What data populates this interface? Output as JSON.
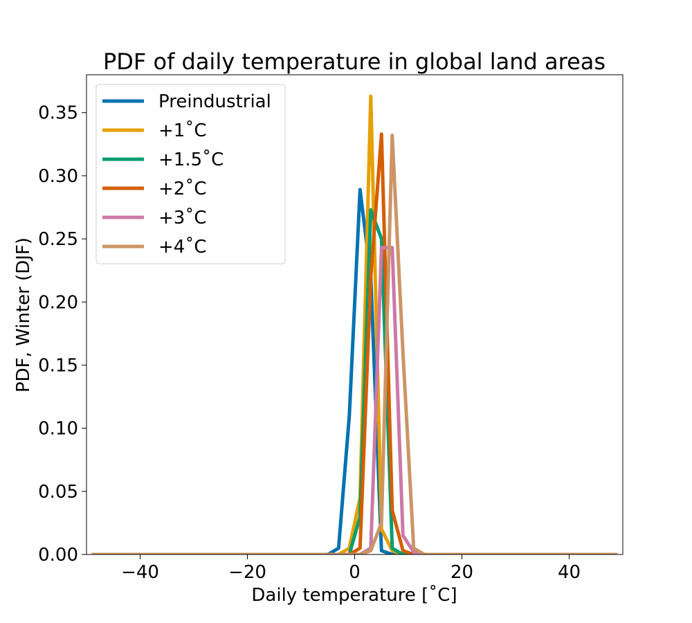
{
  "chart_data": {
    "type": "line",
    "title": "PDF of daily temperature in global land areas",
    "xlabel": "Daily temperature [˚C]",
    "ylabel": "PDF, Winter (DJF)",
    "xlim": [
      -50,
      50
    ],
    "ylim": [
      0,
      0.38
    ],
    "xticks": [
      -40,
      -20,
      0,
      20,
      40
    ],
    "xtick_labels": [
      "−40",
      "−20",
      "0",
      "20",
      "40"
    ],
    "yticks": [
      0,
      0.05,
      0.1,
      0.15,
      0.2,
      0.25,
      0.3,
      0.35
    ],
    "ytick_labels": [
      "0.00",
      "0.05",
      "0.10",
      "0.15",
      "0.20",
      "0.25",
      "0.30",
      "0.35"
    ],
    "grid": false,
    "legend_position": "upper-left",
    "series": [
      {
        "name": "Preindustrial",
        "color": "#0072b2",
        "x": [
          -49,
          -5,
          -3,
          -1,
          1,
          3,
          5,
          7,
          49
        ],
        "y": [
          0,
          0,
          0.005,
          0.11,
          0.289,
          0.22,
          0.003,
          0,
          0
        ]
      },
      {
        "name": "+1˚C",
        "color": "#e69f00",
        "x": [
          -49,
          -3,
          -1,
          1,
          3,
          5,
          7,
          9,
          49
        ],
        "y": [
          0,
          0,
          0.005,
          0.045,
          0.363,
          0.02,
          0.003,
          0,
          0
        ]
      },
      {
        "name": "+1.5˚C",
        "color": "#009e73",
        "x": [
          -49,
          -3,
          -1,
          1,
          3,
          5,
          7,
          9,
          49
        ],
        "y": [
          0,
          0,
          0,
          0.03,
          0.273,
          0.25,
          0.005,
          0,
          0
        ]
      },
      {
        "name": "+2˚C",
        "color": "#d55e00",
        "x": [
          -49,
          -1,
          1,
          3,
          5,
          7,
          9,
          11,
          49
        ],
        "y": [
          0,
          0,
          0.005,
          0.22,
          0.333,
          0.035,
          0.003,
          0,
          0
        ]
      },
      {
        "name": "+3˚C",
        "color": "#cc79a7",
        "x": [
          -49,
          1,
          3,
          5,
          7,
          9,
          11,
          13,
          49
        ],
        "y": [
          0,
          0,
          0.005,
          0.243,
          0.243,
          0.015,
          0.002,
          0,
          0
        ]
      },
      {
        "name": "+4˚C",
        "color": "#cc9566",
        "x": [
          -49,
          1,
          3,
          5,
          7,
          9,
          11,
          13,
          49
        ],
        "y": [
          0,
          0,
          0.003,
          0.025,
          0.332,
          0.16,
          0.005,
          0,
          0
        ]
      }
    ]
  }
}
